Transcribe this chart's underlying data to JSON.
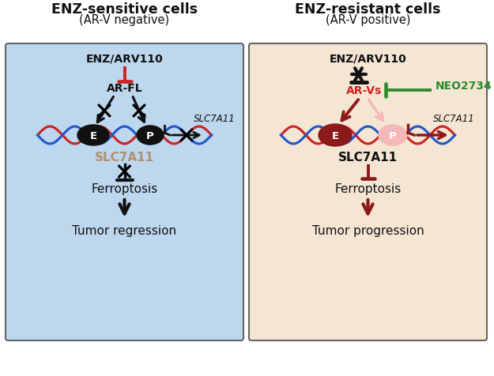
{
  "left_bg": "#bdd7ee",
  "right_bg": "#f5e6d3",
  "border_color": "#666666",
  "black": "#111111",
  "dark_red": "#8b1a1a",
  "red": "#cc2222",
  "light_pink": "#f4b8b8",
  "green": "#2d8a2d",
  "gray_text": "#b09070",
  "white": "#ffffff",
  "dna_red": "#cc2222",
  "dna_blue": "#2255cc",
  "left_title": "ENZ-sensitive cells",
  "left_subtitle": "(AR-V negative)",
  "right_title": "ENZ-resistant cells",
  "right_subtitle": "(AR-V positive)"
}
